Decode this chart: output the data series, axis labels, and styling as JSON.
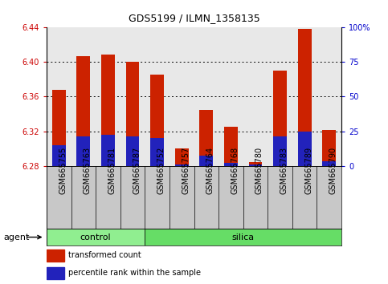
{
  "title": "GDS5199 / ILMN_1358135",
  "samples": [
    "GSM665755",
    "GSM665763",
    "GSM665781",
    "GSM665787",
    "GSM665752",
    "GSM665757",
    "GSM665764",
    "GSM665768",
    "GSM665780",
    "GSM665783",
    "GSM665789",
    "GSM665790"
  ],
  "n_control": 4,
  "base": 6.28,
  "red_tops": [
    6.368,
    6.406,
    6.408,
    6.4,
    6.385,
    6.3,
    6.345,
    6.325,
    6.285,
    6.39,
    6.438,
    6.322
  ],
  "blue_tops": [
    6.304,
    6.314,
    6.316,
    6.314,
    6.312,
    6.282,
    6.292,
    6.284,
    6.282,
    6.314,
    6.32,
    6.286
  ],
  "ylim_left": [
    6.28,
    6.44
  ],
  "yticks_left": [
    6.28,
    6.32,
    6.36,
    6.4,
    6.44
  ],
  "yticks_right": [
    0,
    25,
    50,
    75,
    100
  ],
  "ytick_labels_right": [
    "0",
    "25",
    "50",
    "75",
    "100%"
  ],
  "bar_width": 0.55,
  "red_color": "#cc2200",
  "blue_color": "#2222bb",
  "bg_plot": "#e8e8e8",
  "bg_xlabel": "#c8c8c8",
  "color_control": "#90ee90",
  "color_silica": "#66dd66",
  "tick_color_left": "#cc0000",
  "tick_color_right": "#0000cc",
  "grid_color": "#000000",
  "title_fontsize": 9,
  "tick_fontsize": 7,
  "label_fontsize": 7,
  "group_fontsize": 8
}
